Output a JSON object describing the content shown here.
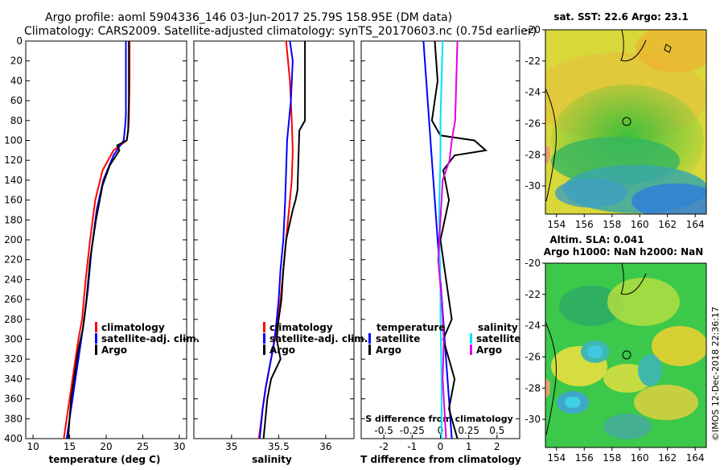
{
  "figure": {
    "title_line1": "Argo profile: aoml 5904336_146 03-Jun-2017 25.79S 158.95E (DM data)",
    "title_line2": "Climatology: CARS2009. Satellite-adjusted climatology: synTS_20170603.nc (0.75d earlier)",
    "credit": "©IMOS 12-Dec-2018 22:36:17"
  },
  "colors": {
    "climatology": "#ff0000",
    "satellite": "#0000ff",
    "argo": "#000000",
    "salinity_satellite": "#00e0ff",
    "salinity_argo": "#e000e0"
  },
  "depth_axis": {
    "ylim": [
      0,
      400
    ],
    "ticks": [
      "0",
      "20",
      "40",
      "60",
      "80",
      "100",
      "120",
      "140",
      "160",
      "180",
      "200",
      "220",
      "240",
      "260",
      "280",
      "300",
      "320",
      "340",
      "360",
      "380",
      "400"
    ]
  },
  "chart_data": [
    {
      "type": "line",
      "name": "temperature",
      "xlabel": "temperature (deg C)",
      "xlim": [
        9,
        31
      ],
      "ylim": [
        0,
        400
      ],
      "xticks": [
        "10",
        "15",
        "20",
        "25",
        "30"
      ],
      "legend": [
        "climatology",
        "satellite-adj. clim.",
        "Argo"
      ],
      "series": [
        {
          "name": "climatology",
          "x": [
            23.2,
            23.2,
            23.1,
            23.0,
            22.8,
            21.0,
            19.5,
            18.5,
            17.8,
            17.2,
            16.7,
            16.2,
            15.8,
            15.4,
            15.0,
            14.6,
            14.2
          ],
          "y": [
            0,
            40,
            80,
            90,
            100,
            110,
            130,
            160,
            200,
            240,
            280,
            300,
            320,
            340,
            360,
            380,
            400
          ]
        },
        {
          "name": "satellite-adj. clim.",
          "x": [
            22.7,
            22.7,
            22.7,
            22.6,
            22.4,
            21.0,
            19.6,
            18.7,
            18.0,
            17.5,
            17.0,
            16.6,
            16.2,
            15.8,
            15.4,
            15.0,
            14.6
          ],
          "y": [
            0,
            40,
            75,
            85,
            100,
            115,
            140,
            170,
            210,
            250,
            280,
            300,
            320,
            340,
            360,
            380,
            400
          ]
        },
        {
          "name": "Argo",
          "x": [
            23.1,
            23.1,
            23.0,
            22.8,
            21.5,
            21.8,
            20.5,
            19.5,
            18.6,
            17.8,
            17.3,
            16.8,
            16.2,
            16.0,
            15.6,
            15.2,
            15.0,
            14.8
          ],
          "y": [
            0,
            60,
            90,
            100,
            105,
            110,
            125,
            145,
            180,
            220,
            260,
            290,
            310,
            320,
            340,
            360,
            380,
            400
          ]
        }
      ]
    },
    {
      "type": "line",
      "name": "salinity",
      "xlabel": "salinity",
      "xlim": [
        34.6,
        36.3
      ],
      "ylim": [
        0,
        400
      ],
      "xticks": [
        "35",
        "35.5",
        "36"
      ],
      "legend": [
        "climatology",
        "satellite-adj. clim.",
        "Argo"
      ],
      "series": [
        {
          "name": "climatology",
          "x": [
            35.58,
            35.62,
            35.64,
            35.65,
            35.64,
            35.62,
            35.58,
            35.55,
            35.52,
            35.48,
            35.44,
            35.4,
            35.36,
            35.33,
            35.29
          ],
          "y": [
            0,
            40,
            80,
            110,
            140,
            160,
            200,
            230,
            260,
            290,
            310,
            330,
            350,
            370,
            400
          ]
        },
        {
          "name": "satellite-adj. clim.",
          "x": [
            35.62,
            35.65,
            35.63,
            35.59,
            35.58,
            35.57,
            35.55,
            35.52,
            35.5,
            35.47,
            35.44,
            35.4,
            35.36,
            35.33,
            35.3
          ],
          "y": [
            0,
            20,
            60,
            100,
            130,
            160,
            200,
            230,
            260,
            290,
            310,
            330,
            350,
            370,
            400
          ]
        },
        {
          "name": "Argo",
          "x": [
            35.78,
            35.78,
            35.72,
            35.7,
            35.68,
            35.65,
            35.58,
            35.55,
            35.53,
            35.5,
            35.48,
            35.52,
            35.42,
            35.38,
            35.36,
            35.35,
            35.34
          ],
          "y": [
            0,
            80,
            90,
            150,
            160,
            170,
            200,
            230,
            260,
            280,
            300,
            320,
            340,
            360,
            380,
            390,
            400
          ]
        }
      ]
    },
    {
      "type": "line",
      "name": "differences",
      "xlabel": "T difference from climatology",
      "xlabel_top": "S difference from climatology",
      "xlim": [
        -2.8,
        2.8
      ],
      "ylim": [
        0,
        400
      ],
      "xticks": [
        "-2",
        "-1",
        "0",
        "1",
        "2"
      ],
      "sticks": [
        "-0.5",
        "-0.25",
        "0",
        "0.25",
        "0.5"
      ],
      "legend_left": {
        "title": "temperature",
        "entries": [
          "satellite",
          "Argo"
        ]
      },
      "legend_right": {
        "title": "salinity",
        "entries": [
          "satellite",
          "Argo"
        ]
      },
      "series": [
        {
          "name": "temperature satellite",
          "x": [
            -0.6,
            -0.5,
            -0.4,
            -0.3,
            -0.2,
            -0.1,
            0.0,
            0.1,
            0.2,
            0.3,
            0.4
          ],
          "y": [
            0,
            40,
            80,
            120,
            160,
            200,
            240,
            280,
            320,
            360,
            400
          ]
        },
        {
          "name": "temperature Argo",
          "x": [
            -0.2,
            -0.1,
            -0.3,
            -0.1,
            0.0,
            1.2,
            1.6,
            0.5,
            0.1,
            0.3,
            0.0,
            0.2,
            0.4,
            0.1,
            0.5,
            0.3,
            0.6
          ],
          "y": [
            0,
            40,
            80,
            90,
            95,
            100,
            110,
            115,
            130,
            160,
            200,
            240,
            280,
            300,
            340,
            370,
            400
          ]
        },
        {
          "name": "salinity satellite",
          "x": [
            0.02,
            0.01,
            0.0,
            0.0,
            -0.01,
            -0.01,
            0.0,
            0.0,
            0.01,
            0.01
          ],
          "y": [
            0,
            40,
            80,
            120,
            160,
            200,
            240,
            280,
            340,
            400
          ]
        },
        {
          "name": "salinity Argo",
          "x": [
            0.15,
            0.14,
            0.13,
            0.1,
            0.08,
            0.02,
            0.0,
            -0.02,
            0.01,
            0.03,
            0.02,
            0.05
          ],
          "y": [
            0,
            40,
            80,
            100,
            120,
            140,
            180,
            220,
            260,
            300,
            340,
            400
          ]
        }
      ]
    }
  ],
  "maps": {
    "sst": {
      "title": "sat. SST: 22.6 Argo: 23.1"
    },
    "sla": {
      "title1": "Altim. SLA: 0.041",
      "title2": "Argo h1000: NaN h2000: NaN"
    },
    "yticks": [
      "-20",
      "-22",
      "-24",
      "-26",
      "-28",
      "-30"
    ],
    "xticks": [
      "154",
      "156",
      "158",
      "160",
      "162",
      "164"
    ]
  }
}
